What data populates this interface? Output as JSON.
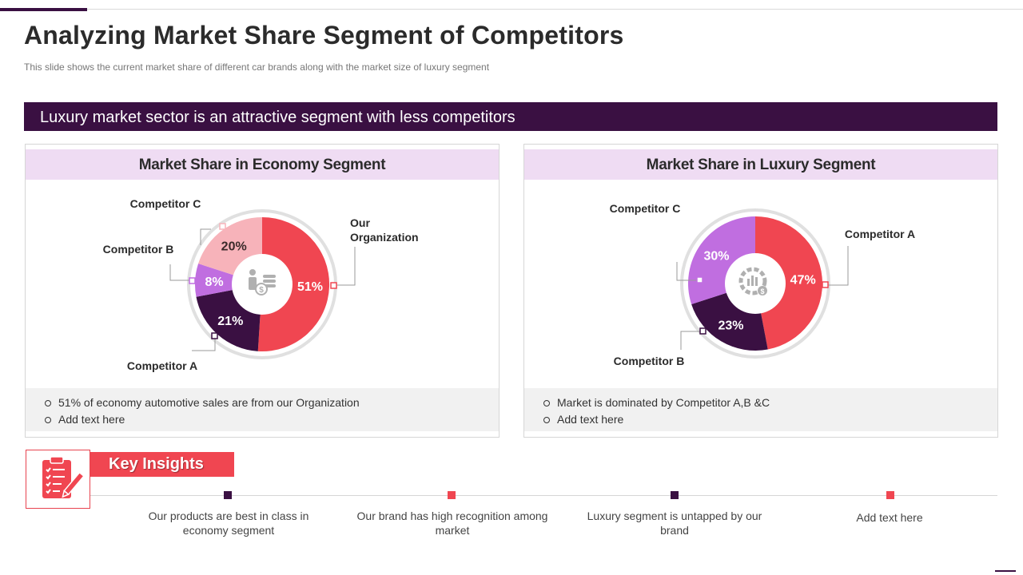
{
  "slide": {
    "title": "Analyzing Market Share Segment of Competitors",
    "subtitle": "This slide shows the current market share of different car brands along with the market size of luxury segment",
    "banner": "Luxury market sector is an attractive segment with less competitors"
  },
  "colors": {
    "dark_purple": "#3a1042",
    "red": "#f04651",
    "light_pink": "#f7b3ba",
    "violet": "#c06ee0",
    "header_bg": "#efdcf3"
  },
  "panels": {
    "economy": {
      "header": "Market Share in Economy Segment",
      "notes": [
        "51% of economy automotive sales are from our Organization",
        "Add text here"
      ],
      "center_icon": "person-money-icon"
    },
    "luxury": {
      "header": "Market Share in Luxury Segment",
      "notes": [
        "Market is dominated by Competitor A,B &C",
        "Add text here"
      ],
      "center_icon": "chart-gear-money-icon"
    }
  },
  "chart_data": [
    {
      "type": "pie",
      "title": "Market Share in Economy Segment",
      "labels": [
        "Our Organization",
        "Competitor A",
        "Competitor B",
        "Competitor C"
      ],
      "values": [
        51,
        21,
        8,
        20
      ],
      "value_labels": [
        "51%",
        "21%",
        "8%",
        "20%"
      ],
      "colors": [
        "#f04651",
        "#3a1042",
        "#c06ee0",
        "#f7b3ba"
      ]
    },
    {
      "type": "pie",
      "title": "Market Share in Luxury Segment",
      "labels": [
        "Competitor A",
        "Competitor B",
        "Competitor C"
      ],
      "values": [
        47,
        23,
        30
      ],
      "value_labels": [
        "47%",
        "23%",
        "30%"
      ],
      "colors": [
        "#f04651",
        "#3a1042",
        "#c06ee0"
      ]
    }
  ],
  "key_insights": {
    "label": "Key Insights",
    "icon": "clipboard-checklist-icon",
    "items": [
      {
        "text": "Our products are best in class in economy segment",
        "color": "#3a1042"
      },
      {
        "text": "Our brand has high recognition among market",
        "color": "#f04651"
      },
      {
        "text": "Luxury segment is untapped by our brand",
        "color": "#3a1042"
      },
      {
        "text": "Add text here",
        "color": "#f04651"
      }
    ]
  }
}
